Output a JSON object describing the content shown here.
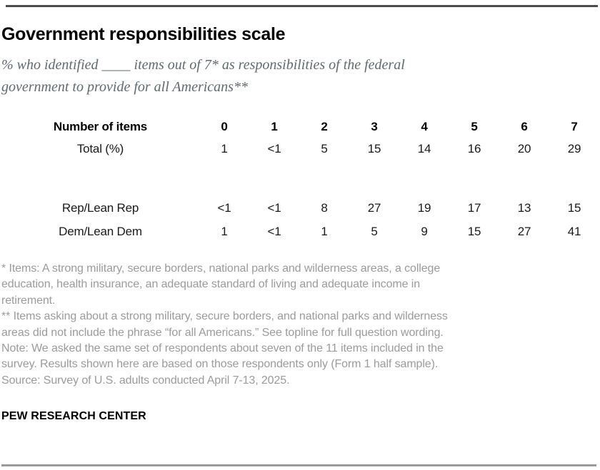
{
  "header": {
    "title": "Government responsibilities scale",
    "subtitle_lines": [
      "% who identified ____ items out of 7* as responsibilities of the federal",
      "government to provide for all Americans**"
    ]
  },
  "chart_data": {
    "type": "table",
    "row_header_label": "Number of items",
    "categories": [
      "0",
      "1",
      "2",
      "3",
      "4",
      "5",
      "6",
      "7"
    ],
    "series": [
      {
        "name": "Total (%)",
        "values": [
          "1",
          "<1",
          "5",
          "15",
          "14",
          "16",
          "20",
          "29"
        ]
      },
      {
        "name": "Rep/Lean Rep",
        "values": [
          "<1",
          "<1",
          "8",
          "27",
          "19",
          "17",
          "13",
          "15"
        ]
      },
      {
        "name": "Dem/Lean Dem",
        "values": [
          "1",
          "<1",
          "1",
          "5",
          "9",
          "15",
          "27",
          "41"
        ]
      }
    ],
    "layout": {
      "value_unit": "%",
      "grid": "off",
      "numeric_columns_align": "center"
    }
  },
  "footnotes": {
    "lines": [
      "* Items: A strong military, secure borders, national parks and wilderness areas, a college",
      "education, health insurance, an adequate standard of living and adequate income in",
      "retirement.",
      "** Items asking about a strong military, secure borders, and national parks and wilderness",
      "areas did not include the phrase “for all Americans.” See topline for full question wording.",
      "Note: We asked the same set of respondents about seven of the 11 items included in the",
      "survey. Results shown here are based on those respondents only (Form 1 half sample).",
      "Source: Survey of U.S. adults conducted April 7-13, 2025."
    ]
  },
  "footer": {
    "branding": "PEW RESEARCH CENTER"
  },
  "colors": {
    "title": "#000000",
    "subtitle": "#606a70",
    "table_text": "#1a1a1a",
    "footnote": "#9b9b9b",
    "rule_top": "#4c4c4c",
    "rule_bottom": "#9a9a9a"
  }
}
